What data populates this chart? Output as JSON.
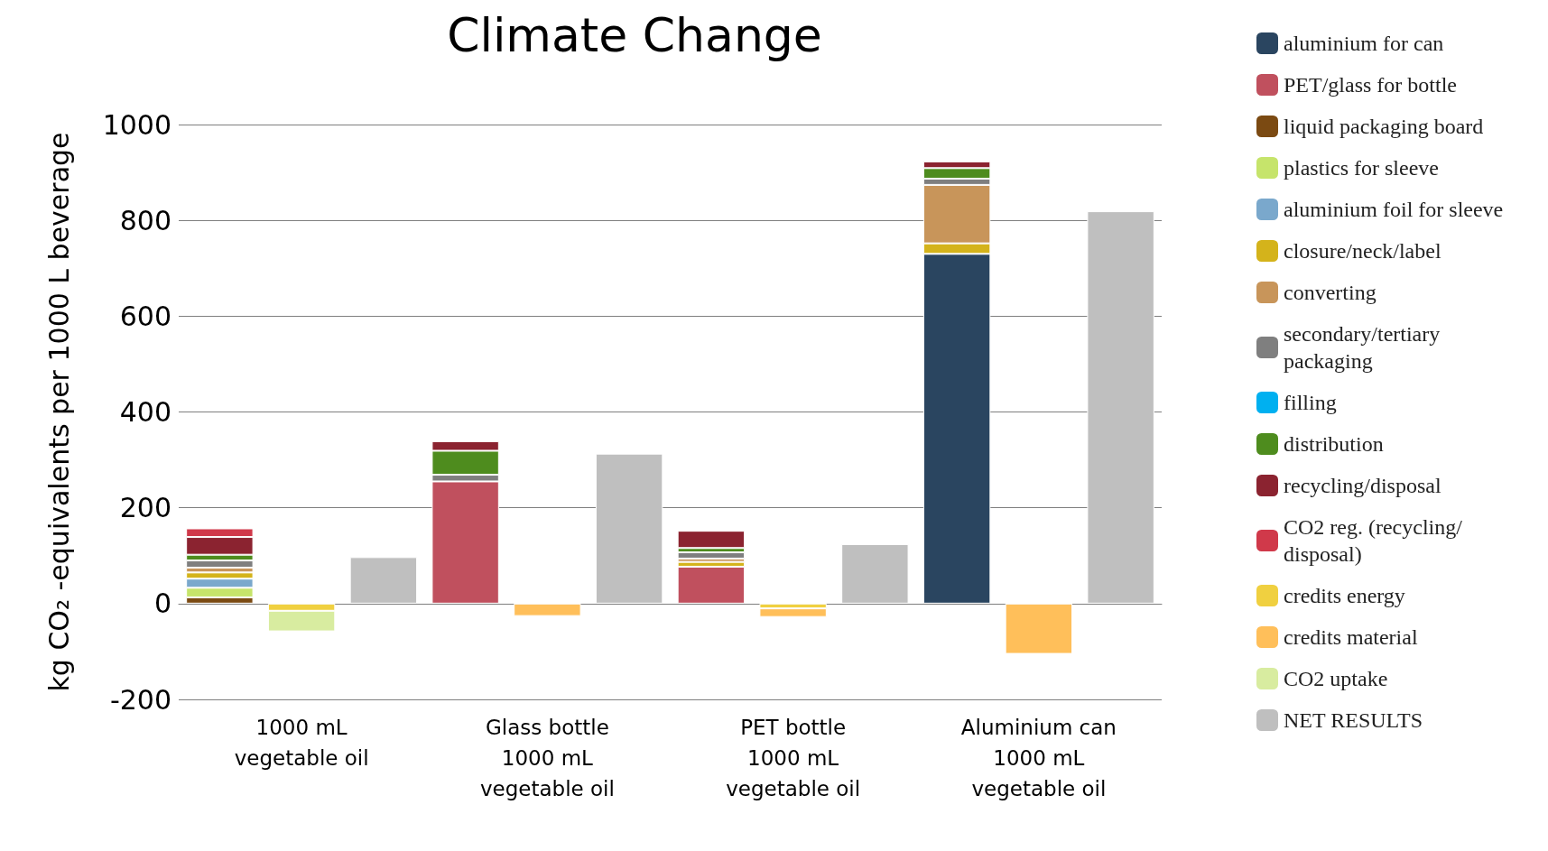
{
  "chart_data": {
    "type": "bar",
    "title": "Climate Change",
    "ylabel": "kg CO₂ -equivalents per 1000 L beverage",
    "categories": [
      null,
      "1000 mL\nvegetable oil",
      null,
      null,
      "Glass bottle\n1000 mL\nvegetable oil",
      null,
      null,
      "PET bottle\n1000 mL\nvegetable oil",
      null,
      null,
      "Aluminium can\n1000 mL\nvegetable oil",
      null
    ],
    "stacked": true,
    "ylim": [
      -200,
      1000
    ],
    "yticks": [
      -200,
      0,
      200,
      400,
      600,
      800,
      1000
    ],
    "grid": "y",
    "legend": "right",
    "series": [
      {
        "name": "aluminium for can",
        "color": "#2a4560",
        "values": [
          null,
          null,
          null,
          null,
          null,
          null,
          null,
          null,
          null,
          730,
          null,
          null
        ]
      },
      {
        "name": "PET/glass for bottle",
        "color": "#c0505e",
        "values": [
          null,
          null,
          null,
          255,
          null,
          null,
          77,
          null,
          null,
          null,
          null,
          null
        ]
      },
      {
        "name": "liquid packaging board",
        "color": "#7b4a12",
        "values": [
          13,
          null,
          null,
          null,
          null,
          null,
          null,
          null,
          null,
          null,
          null,
          null
        ]
      },
      {
        "name": "plastics for sleeve",
        "color": "#c6e46b",
        "values": [
          20,
          null,
          null,
          null,
          null,
          null,
          null,
          null,
          null,
          null,
          null,
          null
        ]
      },
      {
        "name": "aluminium foil for sleeve",
        "color": "#7aa8cc",
        "values": [
          19,
          null,
          null,
          null,
          null,
          null,
          null,
          null,
          null,
          null,
          null,
          null
        ]
      },
      {
        "name": "closure/neck/label",
        "color": "#d4b31b",
        "values": [
          13,
          null,
          null,
          null,
          null,
          null,
          10,
          null,
          null,
          22,
          null,
          null
        ]
      },
      {
        "name": "converting",
        "color": "#c8955a",
        "values": [
          10,
          null,
          null,
          null,
          null,
          null,
          7,
          null,
          null,
          122,
          null,
          null
        ]
      },
      {
        "name": "secondary/tertiary packaging",
        "color": "#7f7f7f",
        "values": [
          15,
          null,
          null,
          14,
          null,
          null,
          13,
          null,
          null,
          13,
          null,
          null
        ]
      },
      {
        "name": "filling",
        "color": "#00b0f0",
        "values": [
          null,
          null,
          null,
          null,
          null,
          null,
          null,
          null,
          null,
          null,
          null,
          null
        ]
      },
      {
        "name": "distribution",
        "color": "#4e8c1e",
        "values": [
          12,
          null,
          null,
          50,
          null,
          null,
          9,
          null,
          null,
          22,
          null,
          null
        ]
      },
      {
        "name": "recycling/disposal",
        "color": "#8b2330",
        "values": [
          37,
          null,
          null,
          20,
          null,
          null,
          36,
          null,
          null,
          14,
          null,
          null
        ]
      },
      {
        "name": "CO2 reg. (recycling/disposal)",
        "color": "#d0394a",
        "values": [
          18,
          null,
          null,
          null,
          null,
          null,
          null,
          null,
          null,
          null,
          null,
          null
        ]
      },
      {
        "name": "credits energy",
        "color": "#f0d040",
        "values": [
          null,
          -15,
          null,
          null,
          null,
          null,
          null,
          -10,
          null,
          null,
          null,
          null
        ]
      },
      {
        "name": "credits material",
        "color": "#ffbf5a",
        "values": [
          null,
          null,
          null,
          null,
          -26,
          null,
          null,
          -18,
          null,
          null,
          -105,
          null
        ]
      },
      {
        "name": "CO2 uptake",
        "color": "#d8eca0",
        "values": [
          null,
          -43,
          null,
          null,
          null,
          null,
          null,
          null,
          null,
          null,
          null,
          null
        ]
      },
      {
        "name": "NET RESULTS",
        "color": "#bfbfbf",
        "values": [
          null,
          null,
          97,
          null,
          null,
          313,
          null,
          null,
          124,
          null,
          null,
          819
        ]
      }
    ]
  }
}
